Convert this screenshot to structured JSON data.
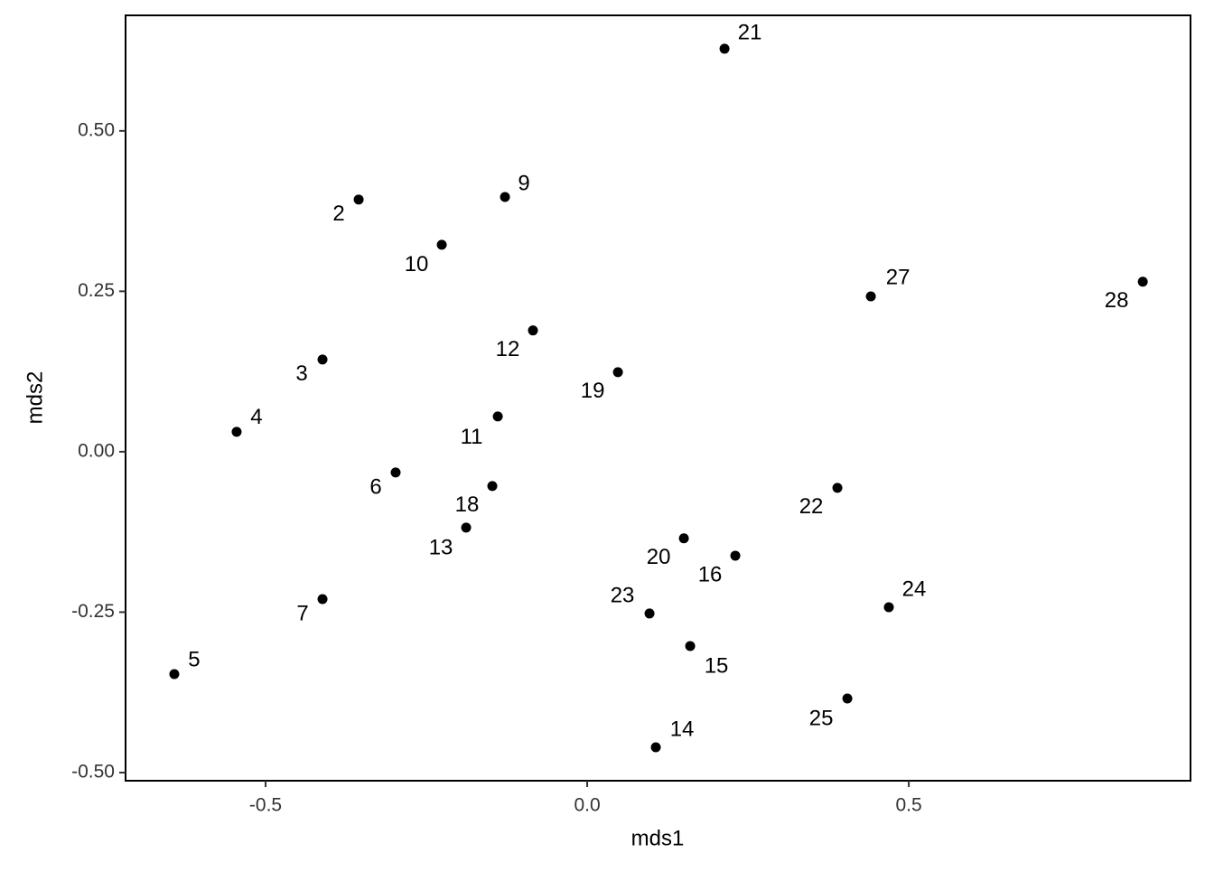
{
  "chart_data": {
    "type": "scatter",
    "xlabel": "mds1",
    "ylabel": "mds2",
    "labels": [
      "21",
      "2",
      "9",
      "10",
      "27",
      "28",
      "12",
      "3",
      "19",
      "4",
      "11",
      "6",
      "18",
      "13",
      "22",
      "20",
      "16",
      "7",
      "23",
      "24",
      "5",
      "15",
      "25",
      "14"
    ],
    "x": [
      0.2135,
      -0.3553,
      -0.1278,
      -0.2261,
      0.441,
      0.8638,
      -0.0843,
      -0.4115,
      0.0478,
      -0.545,
      -0.139,
      -0.2978,
      -0.1475,
      -0.1882,
      0.389,
      0.1503,
      0.2303,
      -0.4115,
      0.0969,
      0.469,
      -0.6419,
      0.1601,
      0.4045,
      0.1067
    ],
    "y": [
      0.628,
      0.393,
      0.397,
      0.3225,
      0.242,
      0.265,
      0.189,
      0.1437,
      0.124,
      0.031,
      0.055,
      -0.0324,
      -0.0535,
      -0.1183,
      -0.0563,
      -0.135,
      -0.162,
      -0.2296,
      -0.2521,
      -0.2423,
      -0.3465,
      -0.3028,
      -0.3845,
      -0.4606
    ],
    "color": "#000000",
    "xlim": [
      -0.7177,
      0.938
    ],
    "ylim": [
      -0.5127,
      0.68
    ],
    "xticks": [
      -0.5,
      {
        "value": 0,
        "label": "0.0"
      },
      0.5
    ],
    "yticks": [
      {
        "value": -0.5,
        "label": "-0.50"
      },
      -0.25,
      {
        "value": 0,
        "label": "0.00"
      },
      0.25,
      {
        "value": 0.5,
        "label": "0.50"
      }
    ]
  }
}
